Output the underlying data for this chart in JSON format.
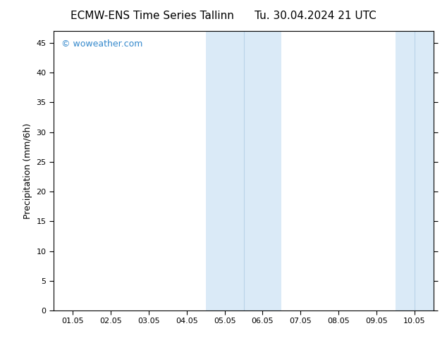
{
  "title_left": "ECMW-ENS Time Series Tallinn",
  "title_right": "Tu. 30.04.2024 21 UTC",
  "ylabel": "Precipitation (mm/6h)",
  "xlabel": "",
  "xlim": [
    -0.5,
    9.5
  ],
  "ylim": [
    0,
    47
  ],
  "yticks": [
    0,
    5,
    10,
    15,
    20,
    25,
    30,
    35,
    40,
    45
  ],
  "xtick_labels": [
    "01.05",
    "02.05",
    "03.05",
    "04.05",
    "05.05",
    "06.05",
    "07.05",
    "08.05",
    "09.05",
    "10.05"
  ],
  "xtick_positions": [
    0,
    1,
    2,
    3,
    4,
    5,
    6,
    7,
    8,
    9
  ],
  "shade_regions": [
    {
      "xmin": 3.5,
      "xmax": 5.5
    },
    {
      "xmin": 8.5,
      "xmax": 9.5
    }
  ],
  "shade_dividers": [
    4.5,
    9.0
  ],
  "shade_color": "#daeaf7",
  "shade_alpha": 1.0,
  "bg_color": "#ffffff",
  "watermark_text": "© woweather.com",
  "watermark_color": "#3388cc",
  "title_fontsize": 11,
  "ylabel_fontsize": 9,
  "tick_fontsize": 8,
  "watermark_fontsize": 9
}
